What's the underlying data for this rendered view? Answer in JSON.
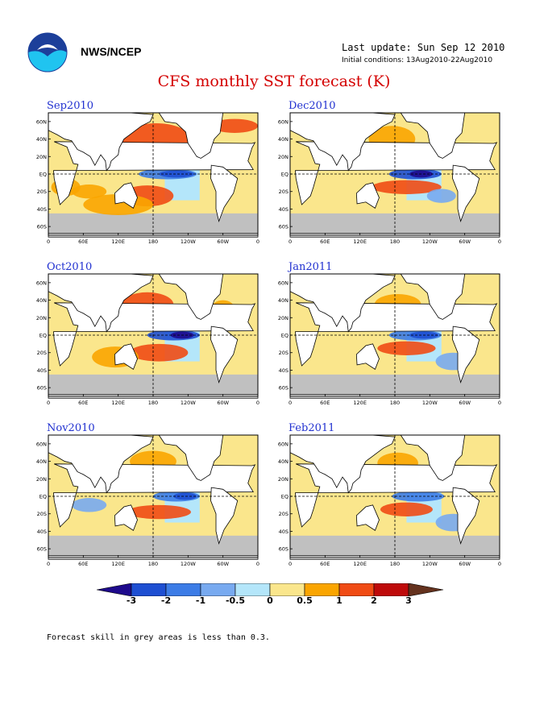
{
  "header": {
    "agency": "NWS/NCEP",
    "last_update": "Last update: Sun Sep 12 2010",
    "initial_conditions": "Initial conditions: 13Aug2010-22Aug2010",
    "title": "CFS monthly SST forecast (K)"
  },
  "panels": [
    {
      "title": "Sep2010"
    },
    {
      "title": "Dec2010"
    },
    {
      "title": "Oct2010"
    },
    {
      "title": "Jan2011"
    },
    {
      "title": "Nov2010"
    },
    {
      "title": "Feb2011"
    }
  ],
  "map_axes": {
    "lat_labels": [
      "60N",
      "40N",
      "20N",
      "EQ",
      "20S",
      "40S",
      "60S"
    ],
    "lon_labels": [
      "0",
      "60E",
      "120E",
      "180",
      "120W",
      "60W",
      "0"
    ]
  },
  "legend": {
    "labels": [
      "-3",
      "-2",
      "-1",
      "-0.5",
      "0",
      "0.5",
      "1",
      "2",
      "3"
    ],
    "colors": [
      "#1e0a8c",
      "#1e4fd2",
      "#3c7ce6",
      "#78aaf0",
      "#b4e6fa",
      "#fae68c",
      "#faa500",
      "#f04b14",
      "#be0a0a",
      "#64321e"
    ]
  },
  "footnote": "Forecast skill in grey areas is less than 0.3."
}
